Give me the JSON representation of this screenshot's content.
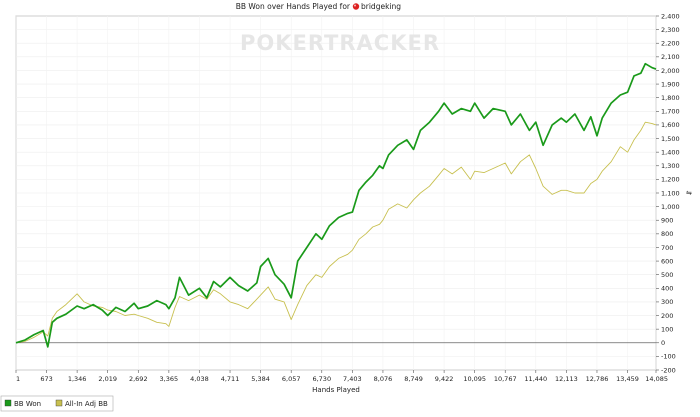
{
  "title": "BB Won over Hands Played for",
  "player": "bridgeking",
  "watermark": "POKERTRACKER",
  "chart_data": {
    "type": "line",
    "title": "BB Won over Hands Played for bridgeking",
    "xlabel": "Hands Played",
    "ylabel": "",
    "xlim": [
      1,
      14085
    ],
    "ylim": [
      -200,
      2400
    ],
    "x_ticks": [
      1,
      673,
      1346,
      2019,
      2692,
      3365,
      4038,
      4711,
      5384,
      6057,
      6730,
      7403,
      8076,
      8749,
      9422,
      10095,
      10767,
      11440,
      12113,
      12786,
      13459,
      14085
    ],
    "x_tick_labels": [
      "1",
      "673",
      "1,346",
      "2,019",
      "2,692",
      "3,365",
      "4,038",
      "4,711",
      "5,384",
      "6,057",
      "6,730",
      "7,403",
      "8,076",
      "8,749",
      "9,422",
      "10,095",
      "10,767",
      "11,440",
      "12,113",
      "12,786",
      "13,459",
      "14,085"
    ],
    "y_ticks": [
      -200,
      -100,
      0,
      100,
      200,
      300,
      400,
      500,
      600,
      700,
      800,
      900,
      1000,
      1100,
      1200,
      1300,
      1400,
      1500,
      1600,
      1700,
      1800,
      1900,
      2000,
      2100,
      2200,
      2300,
      2400
    ],
    "y_tick_labels": [
      "-200",
      "-100",
      "0",
      "100",
      "200",
      "300",
      "400",
      "500",
      "600",
      "700",
      "800",
      "900",
      "1,000",
      "1,100",
      "1,200",
      "1,300",
      "1,400",
      "1,500",
      "1,600",
      "1,700",
      "1,800",
      "1,900",
      "2,000",
      "2,100",
      "2,200",
      "2,300",
      "2,400"
    ],
    "grid": true,
    "legend_position": "bottom-left",
    "series": [
      {
        "name": "BB Won",
        "color": "#1a9a1a",
        "x": [
          1,
          200,
          400,
          600,
          700,
          800,
          900,
          1100,
          1346,
          1500,
          1700,
          1900,
          2019,
          2200,
          2400,
          2600,
          2692,
          2900,
          3100,
          3300,
          3365,
          3500,
          3600,
          3800,
          4038,
          4200,
          4350,
          4500,
          4711,
          4900,
          5100,
          5300,
          5384,
          5550,
          5700,
          5900,
          6057,
          6200,
          6400,
          6600,
          6730,
          6900,
          7100,
          7300,
          7403,
          7550,
          7700,
          7850,
          8000,
          8076,
          8200,
          8400,
          8600,
          8749,
          8900,
          9100,
          9300,
          9422,
          9600,
          9800,
          10000,
          10095,
          10300,
          10500,
          10767,
          10900,
          11100,
          11300,
          11440,
          11600,
          11800,
          12000,
          12113,
          12300,
          12500,
          12650,
          12786,
          12900,
          13100,
          13300,
          13459,
          13600,
          13750,
          13850,
          14000,
          14085
        ],
        "values": [
          0,
          20,
          60,
          90,
          -30,
          150,
          180,
          210,
          270,
          250,
          280,
          240,
          200,
          260,
          230,
          290,
          250,
          270,
          310,
          280,
          250,
          330,
          480,
          350,
          400,
          330,
          450,
          410,
          480,
          420,
          380,
          440,
          560,
          620,
          500,
          430,
          330,
          600,
          700,
          800,
          760,
          860,
          920,
          950,
          960,
          1120,
          1180,
          1230,
          1300,
          1280,
          1380,
          1450,
          1490,
          1420,
          1560,
          1620,
          1700,
          1760,
          1680,
          1720,
          1700,
          1760,
          1650,
          1720,
          1700,
          1600,
          1680,
          1560,
          1620,
          1450,
          1600,
          1650,
          1620,
          1680,
          1560,
          1660,
          1520,
          1650,
          1760,
          1820,
          1840,
          1960,
          1980,
          2050,
          2020,
          2010
        ]
      },
      {
        "name": "All-In Adj BB",
        "color": "#c8c050",
        "x": [
          1,
          200,
          400,
          600,
          700,
          800,
          900,
          1100,
          1346,
          1500,
          1700,
          1900,
          2019,
          2200,
          2400,
          2600,
          2692,
          2900,
          3100,
          3300,
          3365,
          3500,
          3600,
          3800,
          4038,
          4200,
          4350,
          4500,
          4711,
          4900,
          5100,
          5300,
          5384,
          5550,
          5700,
          5900,
          6057,
          6200,
          6400,
          6600,
          6730,
          6900,
          7100,
          7300,
          7403,
          7550,
          7700,
          7850,
          8000,
          8076,
          8200,
          8400,
          8600,
          8749,
          8900,
          9100,
          9300,
          9422,
          9600,
          9800,
          10000,
          10095,
          10300,
          10500,
          10767,
          10900,
          11100,
          11300,
          11440,
          11600,
          11800,
          12000,
          12113,
          12300,
          12500,
          12650,
          12786,
          12900,
          13100,
          13300,
          13459,
          13600,
          13750,
          13850,
          14000,
          14085
        ],
        "values": [
          0,
          10,
          40,
          80,
          50,
          180,
          230,
          280,
          360,
          300,
          270,
          260,
          240,
          230,
          200,
          210,
          200,
          180,
          150,
          140,
          120,
          260,
          340,
          310,
          350,
          320,
          390,
          360,
          300,
          280,
          250,
          320,
          350,
          410,
          320,
          300,
          170,
          280,
          420,
          500,
          480,
          560,
          620,
          650,
          680,
          760,
          800,
          850,
          870,
          900,
          980,
          1020,
          990,
          1050,
          1100,
          1150,
          1230,
          1280,
          1240,
          1290,
          1200,
          1260,
          1250,
          1280,
          1320,
          1240,
          1330,
          1380,
          1280,
          1150,
          1090,
          1120,
          1120,
          1100,
          1100,
          1170,
          1200,
          1260,
          1330,
          1440,
          1400,
          1490,
          1560,
          1620,
          1610,
          1600
        ]
      }
    ]
  }
}
